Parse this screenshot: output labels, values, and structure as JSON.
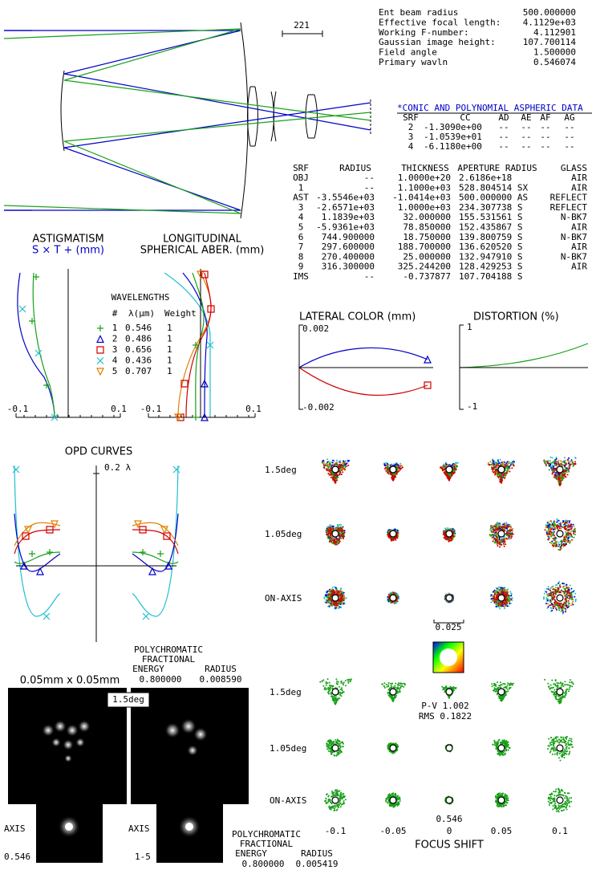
{
  "system": {
    "lines": [
      {
        "label": "Ent beam radius",
        "value": "500.000000"
      },
      {
        "label": "Effective focal length:",
        "value": "4.1129e+03"
      },
      {
        "label": "Working F-number:",
        "value": "4.112901"
      },
      {
        "label": "Gaussian image height:",
        "value": "107.700114"
      },
      {
        "label": "Field angle",
        "value": "1.500000"
      },
      {
        "label": "Primary wavln",
        "value": "0.546074"
      }
    ]
  },
  "lens_scale": "221",
  "aspheric": {
    "title": "*CONIC AND POLYNOMIAL ASPHERIC DATA",
    "headers": [
      "SRF",
      "CC",
      "AD",
      "AE",
      "AF",
      "AG"
    ],
    "rows": [
      [
        "2",
        "-1.3090e+00",
        "--",
        "--",
        "--",
        "--"
      ],
      [
        "3",
        "-1.0539e+01",
        "--",
        "--",
        "--",
        "--"
      ],
      [
        "4",
        "-6.1180e+00",
        "--",
        "--",
        "--",
        "--"
      ]
    ]
  },
  "surfaces": {
    "headers": [
      "SRF",
      "RADIUS",
      "THICKNESS",
      "APERTURE RADIUS",
      "GLASS"
    ],
    "rows": [
      [
        "OBJ",
        "--",
        "1.0000e+20",
        "2.6186e+18",
        "AIR"
      ],
      [
        "1",
        "--",
        "1.1000e+03",
        "528.804514 SX",
        "AIR"
      ],
      [
        "AST",
        "-3.5546e+03",
        "-1.0414e+03",
        "500.000000 AS",
        "REFLECT"
      ],
      [
        "3",
        "-2.6571e+03",
        "1.0000e+03",
        "234.307738 S",
        "REFLECT"
      ],
      [
        "4",
        "1.1839e+03",
        "32.000000",
        "155.531561 S",
        "N-BK7"
      ],
      [
        "5",
        "-5.9361e+03",
        "78.850000",
        "152.435867 S",
        "AIR"
      ],
      [
        "6",
        "744.900000",
        "18.750000",
        "139.800759 S",
        "N-BK7"
      ],
      [
        "7",
        "297.600000",
        "188.700000",
        "136.620520 S",
        "AIR"
      ],
      [
        "8",
        "270.400000",
        "25.000000",
        "132.947910 S",
        "N-BK7"
      ],
      [
        "9",
        "316.300000",
        "325.244200",
        "128.429253 S",
        "AIR"
      ],
      [
        "IMS",
        "--",
        "-0.737877",
        "107.704188 S"
      ]
    ]
  },
  "astigmatism": {
    "title": "ASTIGMATISM",
    "legend": "S × T + (mm)",
    "ticks": [
      "-0.1",
      "0.1"
    ]
  },
  "spherical": {
    "title": [
      "LONGITUDINAL",
      "SPHERICAL ABER. (mm)"
    ],
    "ticks": [
      "-0.1",
      "0.1"
    ]
  },
  "wavelengths": {
    "title": "WAVELENGTHS",
    "headers": [
      "#",
      "λ(μm)",
      "Weight"
    ],
    "rows": [
      [
        "1",
        "0.546",
        "1"
      ],
      [
        "2",
        "0.486",
        "1"
      ],
      [
        "3",
        "0.656",
        "1"
      ],
      [
        "4",
        "0.436",
        "1"
      ],
      [
        "5",
        "0.707",
        "1"
      ]
    ]
  },
  "lateral_color": {
    "title": "LATERAL COLOR (mm)",
    "top": "0.002",
    "bottom": "-0.002"
  },
  "distortion": {
    "title": "DISTORTION (%)",
    "top": "1",
    "bottom": "-1"
  },
  "opd": {
    "title": "OPD CURVES",
    "scale": "0.2 λ"
  },
  "spots": {
    "fields": [
      "1.5deg",
      "1.05deg",
      "ON-AXIS"
    ],
    "scale": "0.025"
  },
  "psf": {
    "size": "0.05mm x 0.05mm",
    "field": "1.5deg",
    "axis_labels": [
      "AXIS",
      "AXIS"
    ],
    "wavelength_labels": [
      "0.546",
      "1-5"
    ],
    "energy": [
      {
        "lines": [
          "POLYCHROMATIC",
          "FRACTIONAL"
        ],
        "headers": [
          "ENERGY",
          "RADIUS"
        ],
        "values": [
          "0.800000",
          "0.008590"
        ]
      },
      {
        "lines": [
          "POLYCHROMATIC",
          "FRACTIONAL"
        ],
        "headers": [
          "ENERGY",
          "RADIUS"
        ],
        "values": [
          "0.800000",
          "0.005419"
        ]
      }
    ]
  },
  "through_focus": {
    "fields": [
      "1.5deg",
      "1.05deg",
      "ON-AXIS"
    ],
    "pv": "P-V 1.002",
    "rms": "RMS 0.1822",
    "wavelength": "0.546",
    "shifts": [
      "-0.1",
      "-0.05",
      "0",
      "0.05",
      "0.1"
    ],
    "axis_title": "FOCUS SHIFT"
  }
}
